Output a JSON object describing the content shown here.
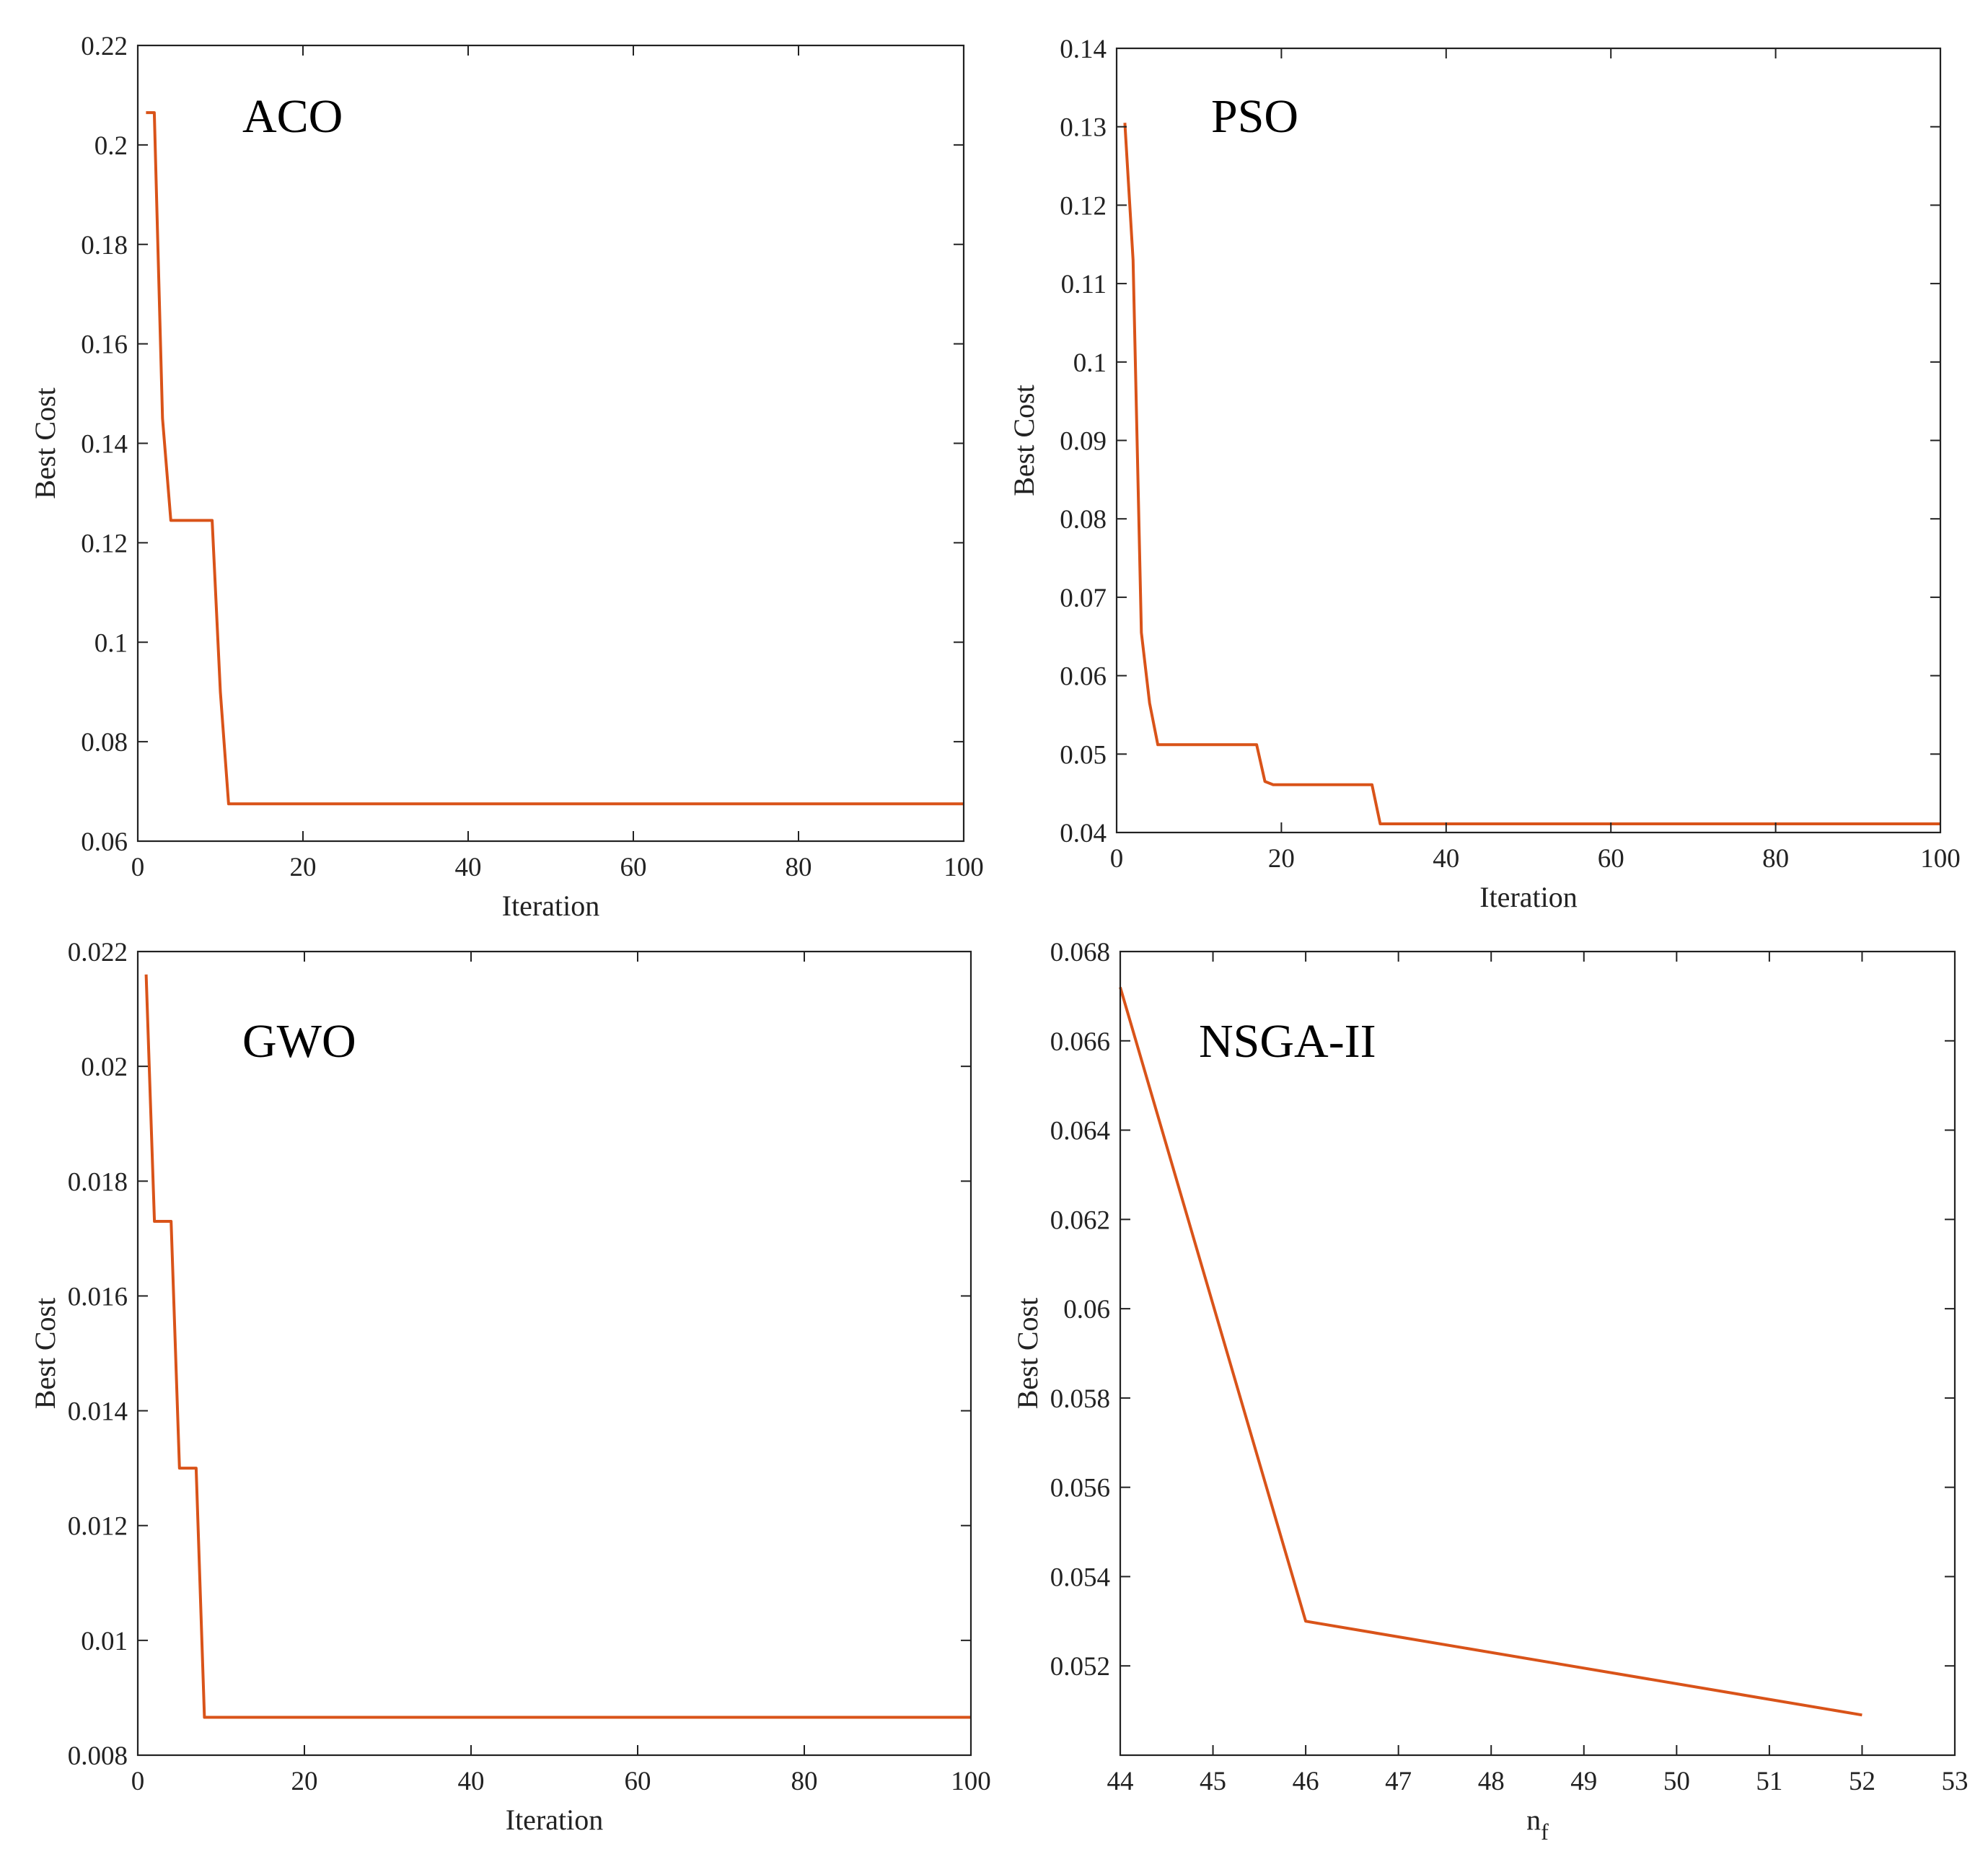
{
  "chart_data": [
    {
      "id": "aco",
      "type": "line",
      "title": "ACO",
      "xlabel": "Iteration",
      "ylabel": "Best Cost",
      "xlim": [
        0,
        100
      ],
      "ylim": [
        0.06,
        0.22
      ],
      "xticks": [
        0,
        20,
        40,
        60,
        80,
        100
      ],
      "xtick_labels": [
        "0",
        "20",
        "40",
        "60",
        "80",
        "100"
      ],
      "yticks": [
        0.06,
        0.08,
        0.1,
        0.12,
        0.14,
        0.16,
        0.18,
        0.2,
        0.22
      ],
      "ytick_labels": [
        "0.06",
        "0.08",
        "0.1",
        "0.12",
        "0.14",
        "0.16",
        "0.18",
        "0.2",
        "0.22"
      ],
      "series": [
        {
          "name": "ACO",
          "color": "#d95319",
          "x": [
            1,
            2,
            3,
            4,
            5,
            6,
            7,
            8,
            9,
            10,
            11,
            20,
            40,
            60,
            80,
            100
          ],
          "y": [
            0.2065,
            0.2065,
            0.145,
            0.1245,
            0.1245,
            0.1245,
            0.1245,
            0.1245,
            0.1245,
            0.09,
            0.0675,
            0.0675,
            0.0675,
            0.0675,
            0.0675,
            0.0675
          ]
        }
      ]
    },
    {
      "id": "pso",
      "type": "line",
      "title": "PSO",
      "xlabel": "Iteration",
      "ylabel": "Best Cost",
      "xlim": [
        0,
        100
      ],
      "ylim": [
        0.04,
        0.14
      ],
      "xticks": [
        0,
        20,
        40,
        60,
        80,
        100
      ],
      "xtick_labels": [
        "0",
        "20",
        "40",
        "60",
        "80",
        "100"
      ],
      "yticks": [
        0.04,
        0.05,
        0.06,
        0.07,
        0.08,
        0.09,
        0.1,
        0.11,
        0.12,
        0.13,
        0.14
      ],
      "ytick_labels": [
        "0.04",
        "0.05",
        "0.06",
        "0.07",
        "0.08",
        "0.09",
        "0.1",
        "0.11",
        "0.12",
        "0.13",
        "0.14"
      ],
      "series": [
        {
          "name": "PSO",
          "color": "#d95319",
          "x": [
            1,
            2,
            3,
            4,
            5,
            10,
            17,
            18,
            19,
            20,
            25,
            31,
            32,
            40,
            60,
            80,
            100
          ],
          "y": [
            0.1305,
            0.113,
            0.0655,
            0.0565,
            0.0512,
            0.0512,
            0.0512,
            0.0465,
            0.0461,
            0.0461,
            0.0461,
            0.0461,
            0.0411,
            0.0411,
            0.0411,
            0.0411,
            0.0411
          ]
        }
      ]
    },
    {
      "id": "gwo",
      "type": "line",
      "title": "GWO",
      "xlabel": "Iteration",
      "ylabel": "Best Cost",
      "xlim": [
        0,
        100
      ],
      "ylim": [
        0.008,
        0.022
      ],
      "xticks": [
        0,
        20,
        40,
        60,
        80,
        100
      ],
      "xtick_labels": [
        "0",
        "20",
        "40",
        "60",
        "80",
        "100"
      ],
      "yticks": [
        0.008,
        0.01,
        0.012,
        0.014,
        0.016,
        0.018,
        0.02,
        0.022
      ],
      "ytick_labels": [
        "0.008",
        "0.01",
        "0.012",
        "0.014",
        "0.016",
        "0.018",
        "0.02",
        "0.022"
      ],
      "series": [
        {
          "name": "GWO",
          "color": "#d95319",
          "x": [
            1,
            2,
            3,
            4,
            5,
            6,
            7,
            8,
            20,
            40,
            60,
            80,
            100
          ],
          "y": [
            0.0216,
            0.0173,
            0.0173,
            0.0173,
            0.013,
            0.013,
            0.013,
            0.00866,
            0.00866,
            0.00866,
            0.00866,
            0.00866,
            0.00866
          ]
        }
      ]
    },
    {
      "id": "nsga",
      "type": "line",
      "title": "NSGA-II",
      "xlabel": "n",
      "xlabel_sub": "f",
      "ylabel": "Best Cost",
      "xlim": [
        44,
        53
      ],
      "ylim": [
        0.05,
        0.068
      ],
      "xticks": [
        44,
        45,
        46,
        47,
        48,
        49,
        50,
        51,
        52,
        53
      ],
      "xtick_labels": [
        "44",
        "45",
        "46",
        "47",
        "48",
        "49",
        "50",
        "51",
        "52",
        "53"
      ],
      "yticks": [
        0.052,
        0.054,
        0.056,
        0.058,
        0.06,
        0.062,
        0.064,
        0.066,
        0.068
      ],
      "ytick_labels": [
        "0.052",
        "0.054",
        "0.056",
        "0.058",
        "0.06",
        "0.062",
        "0.064",
        "0.066",
        "0.068"
      ],
      "series": [
        {
          "name": "NSGA-II",
          "color": "#d95319",
          "x": [
            44,
            46,
            52
          ],
          "y": [
            0.0672,
            0.053,
            0.0509
          ]
        }
      ]
    }
  ]
}
